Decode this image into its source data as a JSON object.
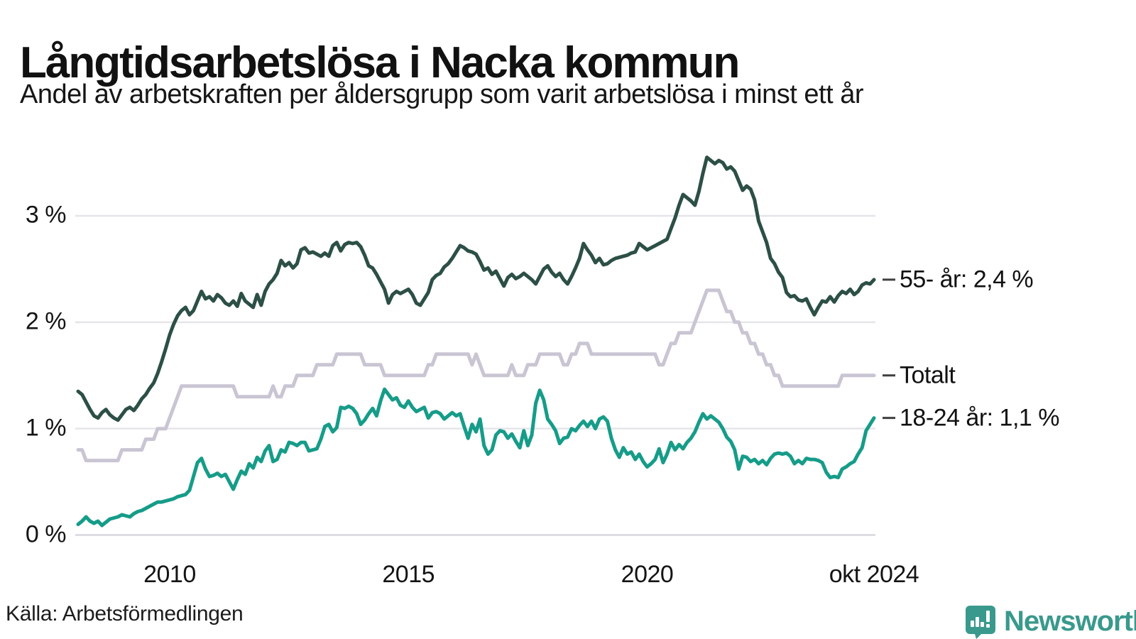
{
  "header": {
    "title": "Långtidsarbetslösa i Nacka kommun",
    "subtitle": "Andel av arbetskraften per åldersgrupp som varit arbetslösa i minst ett år"
  },
  "source": {
    "label": "Källa: Arbetsförmedlingen"
  },
  "branding": {
    "name": "Newsworthy",
    "color": "#39998c",
    "icon": "speech-bubble-bar-chart-icon"
  },
  "chart_data": {
    "type": "line",
    "title": "Långtidsarbetslösa i Nacka kommun",
    "subtitle": "Andel av arbetskraften per åldersgrupp som varit arbetslösa i minst ett år",
    "unit": "% av arbetskraften",
    "frequency": "monthly",
    "x_start": "2008-02",
    "x_end": "2024-10",
    "ylim": [
      0,
      3.75
    ],
    "grid": "horizontal",
    "grid_color": "#e6e5ea",
    "axis_color": "#dedde4",
    "label_tick_color": "#3f3f3f",
    "yticks": [
      {
        "label": "0 %",
        "value": 0
      },
      {
        "label": "1 %",
        "value": 1
      },
      {
        "label": "2 %",
        "value": 2
      },
      {
        "label": "3 %",
        "value": 3
      }
    ],
    "xticks": [
      {
        "label": "2010",
        "month_index": 23
      },
      {
        "label": "2015",
        "month_index": 83
      },
      {
        "label": "2020",
        "month_index": 143
      },
      {
        "label": "okt 2024",
        "month_index": 200
      }
    ],
    "legend": "end-of-line labels",
    "series": [
      {
        "name": "55- år",
        "end_label": "55- år: 2,4 %",
        "end_value_text": "2,4 %",
        "color": "#2c4f46",
        "values": [
          1.35,
          1.32,
          1.25,
          1.18,
          1.12,
          1.1,
          1.15,
          1.18,
          1.13,
          1.1,
          1.08,
          1.13,
          1.18,
          1.2,
          1.17,
          1.22,
          1.28,
          1.32,
          1.38,
          1.43,
          1.52,
          1.63,
          1.75,
          1.88,
          1.98,
          2.06,
          2.11,
          2.14,
          2.07,
          2.11,
          2.2,
          2.29,
          2.22,
          2.24,
          2.2,
          2.26,
          2.23,
          2.18,
          2.16,
          2.2,
          2.15,
          2.27,
          2.2,
          2.17,
          2.14,
          2.26,
          2.16,
          2.29,
          2.36,
          2.4,
          2.46,
          2.58,
          2.53,
          2.56,
          2.51,
          2.55,
          2.68,
          2.7,
          2.65,
          2.66,
          2.64,
          2.62,
          2.65,
          2.62,
          2.72,
          2.75,
          2.67,
          2.73,
          2.75,
          2.74,
          2.75,
          2.71,
          2.63,
          2.53,
          2.51,
          2.45,
          2.38,
          2.31,
          2.18,
          2.26,
          2.29,
          2.27,
          2.29,
          2.31,
          2.26,
          2.18,
          2.16,
          2.22,
          2.28,
          2.4,
          2.44,
          2.46,
          2.52,
          2.55,
          2.6,
          2.66,
          2.72,
          2.7,
          2.67,
          2.66,
          2.64,
          2.57,
          2.49,
          2.51,
          2.45,
          2.48,
          2.41,
          2.34,
          2.42,
          2.45,
          2.41,
          2.43,
          2.46,
          2.43,
          2.4,
          2.36,
          2.43,
          2.5,
          2.53,
          2.47,
          2.43,
          2.46,
          2.4,
          2.36,
          2.43,
          2.51,
          2.6,
          2.74,
          2.68,
          2.63,
          2.56,
          2.6,
          2.54,
          2.55,
          2.58,
          2.6,
          2.61,
          2.62,
          2.63,
          2.65,
          2.66,
          2.74,
          2.71,
          2.68,
          2.7,
          2.72,
          2.74,
          2.76,
          2.78,
          2.88,
          2.98,
          3.1,
          3.2,
          3.17,
          3.14,
          3.1,
          3.23,
          3.4,
          3.55,
          3.52,
          3.49,
          3.52,
          3.5,
          3.44,
          3.46,
          3.42,
          3.33,
          3.24,
          3.28,
          3.25,
          3.15,
          2.95,
          2.85,
          2.75,
          2.6,
          2.55,
          2.47,
          2.42,
          2.28,
          2.24,
          2.25,
          2.21,
          2.2,
          2.22,
          2.14,
          2.07,
          2.14,
          2.2,
          2.19,
          2.24,
          2.19,
          2.25,
          2.29,
          2.27,
          2.31,
          2.26,
          2.29,
          2.35,
          2.37,
          2.36,
          2.4
        ]
      },
      {
        "name": "Totalt",
        "end_label": "Totalt",
        "end_value_text": "1,5 %",
        "color": "#c9c5d3",
        "values": [
          0.8,
          0.8,
          0.7,
          0.7,
          0.7,
          0.7,
          0.7,
          0.7,
          0.7,
          0.7,
          0.7,
          0.8,
          0.8,
          0.8,
          0.8,
          0.8,
          0.8,
          0.9,
          0.9,
          0.9,
          1.0,
          1.0,
          1.0,
          1.1,
          1.2,
          1.3,
          1.4,
          1.4,
          1.4,
          1.4,
          1.4,
          1.4,
          1.4,
          1.4,
          1.4,
          1.4,
          1.4,
          1.4,
          1.4,
          1.4,
          1.3,
          1.3,
          1.3,
          1.3,
          1.3,
          1.3,
          1.3,
          1.3,
          1.3,
          1.4,
          1.3,
          1.3,
          1.4,
          1.4,
          1.4,
          1.5,
          1.5,
          1.5,
          1.5,
          1.5,
          1.6,
          1.6,
          1.6,
          1.6,
          1.6,
          1.7,
          1.7,
          1.7,
          1.7,
          1.7,
          1.7,
          1.7,
          1.6,
          1.6,
          1.6,
          1.6,
          1.6,
          1.5,
          1.5,
          1.5,
          1.5,
          1.5,
          1.5,
          1.5,
          1.5,
          1.5,
          1.5,
          1.5,
          1.6,
          1.6,
          1.7,
          1.7,
          1.7,
          1.7,
          1.7,
          1.7,
          1.7,
          1.7,
          1.7,
          1.6,
          1.7,
          1.6,
          1.5,
          1.5,
          1.5,
          1.5,
          1.5,
          1.5,
          1.5,
          1.6,
          1.5,
          1.5,
          1.5,
          1.6,
          1.6,
          1.6,
          1.7,
          1.7,
          1.7,
          1.7,
          1.7,
          1.7,
          1.6,
          1.6,
          1.7,
          1.7,
          1.8,
          1.8,
          1.8,
          1.7,
          1.7,
          1.7,
          1.7,
          1.7,
          1.7,
          1.7,
          1.7,
          1.7,
          1.7,
          1.7,
          1.7,
          1.7,
          1.7,
          1.7,
          1.7,
          1.7,
          1.6,
          1.6,
          1.7,
          1.8,
          1.8,
          1.9,
          1.9,
          1.9,
          1.9,
          2.0,
          2.1,
          2.2,
          2.3,
          2.3,
          2.3,
          2.3,
          2.2,
          2.1,
          2.1,
          2.0,
          2.0,
          1.9,
          1.9,
          1.8,
          1.8,
          1.7,
          1.7,
          1.6,
          1.6,
          1.5,
          1.5,
          1.4,
          1.4,
          1.4,
          1.4,
          1.4,
          1.4,
          1.4,
          1.4,
          1.4,
          1.4,
          1.4,
          1.4,
          1.4,
          1.4,
          1.4,
          1.5,
          1.5,
          1.5,
          1.5,
          1.5,
          1.5,
          1.5,
          1.5,
          1.5
        ]
      },
      {
        "name": "18-24 år",
        "end_label": "18-24 år: 1,1 %",
        "end_value_text": "1,1 %",
        "color": "#169c89",
        "values": [
          0.1,
          0.13,
          0.17,
          0.13,
          0.11,
          0.13,
          0.09,
          0.12,
          0.15,
          0.16,
          0.17,
          0.19,
          0.18,
          0.17,
          0.2,
          0.22,
          0.23,
          0.25,
          0.27,
          0.29,
          0.31,
          0.31,
          0.32,
          0.33,
          0.34,
          0.36,
          0.37,
          0.38,
          0.42,
          0.55,
          0.68,
          0.72,
          0.62,
          0.55,
          0.56,
          0.58,
          0.55,
          0.57,
          0.5,
          0.43,
          0.52,
          0.6,
          0.57,
          0.67,
          0.63,
          0.73,
          0.69,
          0.79,
          0.84,
          0.69,
          0.71,
          0.8,
          0.78,
          0.87,
          0.86,
          0.84,
          0.87,
          0.87,
          0.79,
          0.8,
          0.81,
          0.9,
          1.02,
          1.04,
          0.97,
          1.01,
          1.2,
          1.19,
          1.21,
          1.19,
          1.14,
          1.04,
          1.08,
          1.14,
          1.19,
          1.12,
          1.26,
          1.37,
          1.32,
          1.27,
          1.29,
          1.22,
          1.2,
          1.26,
          1.2,
          1.16,
          1.18,
          1.2,
          1.1,
          1.15,
          1.16,
          1.14,
          1.09,
          1.12,
          1.15,
          1.12,
          1.14,
          1.02,
          0.91,
          1.04,
          0.97,
          1.09,
          0.84,
          0.76,
          0.8,
          0.94,
          0.98,
          0.97,
          0.91,
          0.95,
          0.88,
          0.82,
          0.98,
          0.84,
          0.94,
          1.24,
          1.36,
          1.27,
          1.09,
          1.04,
          0.98,
          0.86,
          0.91,
          0.92,
          1.0,
          0.98,
          1.03,
          1.07,
          1.02,
          1.07,
          1.0,
          1.09,
          1.11,
          1.07,
          0.91,
          0.8,
          0.73,
          0.82,
          0.76,
          0.78,
          0.71,
          0.76,
          0.69,
          0.64,
          0.67,
          0.71,
          0.81,
          0.68,
          0.76,
          0.87,
          0.8,
          0.85,
          0.81,
          0.87,
          0.91,
          0.97,
          1.06,
          1.14,
          1.09,
          1.12,
          1.09,
          1.06,
          1.0,
          0.92,
          0.88,
          0.8,
          0.62,
          0.74,
          0.73,
          0.69,
          0.71,
          0.67,
          0.7,
          0.66,
          0.72,
          0.76,
          0.77,
          0.76,
          0.77,
          0.74,
          0.67,
          0.7,
          0.67,
          0.72,
          0.71,
          0.71,
          0.7,
          0.68,
          0.59,
          0.54,
          0.55,
          0.54,
          0.62,
          0.64,
          0.67,
          0.69,
          0.76,
          0.82,
          0.98,
          1.04,
          1.1
        ]
      }
    ]
  }
}
